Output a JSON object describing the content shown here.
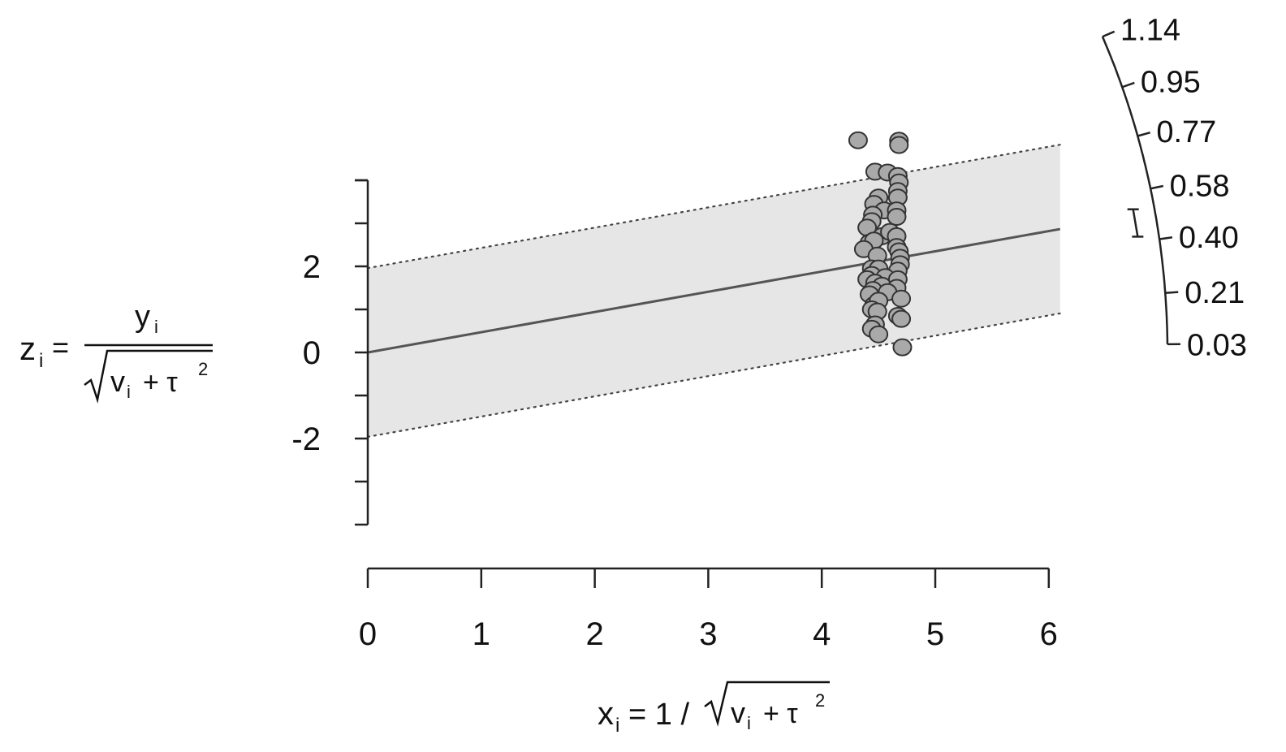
{
  "chart_data": {
    "type": "scatter",
    "subtype": "radial (Galbraith) plot",
    "title": "",
    "xlabel": {
      "lhs": "x",
      "sub": "i",
      "eq": "= 1 /",
      "rad_v": "v",
      "rad_sub": "i",
      "rad_plus": "+ τ",
      "rad_sup": "2"
    },
    "ylabel": {
      "lhs": "z",
      "lhs_sub": "i",
      "eq": "=",
      "num": "y",
      "num_sub": "i",
      "den_v": "v",
      "den_sub": "i",
      "den_plus": "+ τ",
      "den_sup": "2"
    },
    "xlim": [
      0,
      6
    ],
    "ylim": [
      -4,
      4
    ],
    "x_ticks": [
      "0",
      "1",
      "2",
      "3",
      "4",
      "5",
      "6"
    ],
    "y_ticks": [
      "-2",
      "0",
      "2"
    ],
    "y_minor_ticks": [
      -3,
      -2,
      -1,
      0,
      1,
      2,
      3,
      4
    ],
    "fit_line": {
      "intercept": 0,
      "slope": 0.47,
      "x_end": 6.1
    },
    "band": {
      "halfwidth": 1.96
    },
    "points": [
      {
        "x": 4.32,
        "y": 4.93
      },
      {
        "x": 4.68,
        "y": 4.92
      },
      {
        "x": 4.68,
        "y": 4.82
      },
      {
        "x": 4.47,
        "y": 4.2
      },
      {
        "x": 4.58,
        "y": 4.18
      },
      {
        "x": 4.67,
        "y": 4.1
      },
      {
        "x": 4.68,
        "y": 3.95
      },
      {
        "x": 4.5,
        "y": 3.6
      },
      {
        "x": 4.67,
        "y": 3.75
      },
      {
        "x": 4.67,
        "y": 3.6
      },
      {
        "x": 4.46,
        "y": 3.45
      },
      {
        "x": 4.55,
        "y": 3.3
      },
      {
        "x": 4.45,
        "y": 3.2
      },
      {
        "x": 4.66,
        "y": 3.3
      },
      {
        "x": 4.44,
        "y": 3.05
      },
      {
        "x": 4.66,
        "y": 3.15
      },
      {
        "x": 4.4,
        "y": 2.9
      },
      {
        "x": 4.53,
        "y": 2.7
      },
      {
        "x": 4.6,
        "y": 2.8
      },
      {
        "x": 4.66,
        "y": 2.7
      },
      {
        "x": 4.42,
        "y": 2.55
      },
      {
        "x": 4.46,
        "y": 2.6
      },
      {
        "x": 4.37,
        "y": 2.4
      },
      {
        "x": 4.66,
        "y": 2.45
      },
      {
        "x": 4.68,
        "y": 2.35
      },
      {
        "x": 4.49,
        "y": 2.25
      },
      {
        "x": 4.69,
        "y": 2.2
      },
      {
        "x": 4.69,
        "y": 2.05
      },
      {
        "x": 4.44,
        "y": 1.95
      },
      {
        "x": 4.5,
        "y": 1.95
      },
      {
        "x": 4.67,
        "y": 1.9
      },
      {
        "x": 4.44,
        "y": 1.8
      },
      {
        "x": 4.56,
        "y": 1.75
      },
      {
        "x": 4.4,
        "y": 1.7
      },
      {
        "x": 4.47,
        "y": 1.62
      },
      {
        "x": 4.67,
        "y": 1.7
      },
      {
        "x": 4.53,
        "y": 1.55
      },
      {
        "x": 4.45,
        "y": 1.45
      },
      {
        "x": 4.66,
        "y": 1.5
      },
      {
        "x": 4.42,
        "y": 1.35
      },
      {
        "x": 4.58,
        "y": 1.4
      },
      {
        "x": 4.7,
        "y": 1.25
      },
      {
        "x": 4.46,
        "y": 1.1
      },
      {
        "x": 4.5,
        "y": 1.2
      },
      {
        "x": 4.44,
        "y": 1.0
      },
      {
        "x": 4.49,
        "y": 0.95
      },
      {
        "x": 4.67,
        "y": 0.85
      },
      {
        "x": 4.7,
        "y": 0.78
      },
      {
        "x": 4.47,
        "y": 0.65
      },
      {
        "x": 4.44,
        "y": 0.55
      },
      {
        "x": 4.5,
        "y": 0.42
      },
      {
        "x": 4.71,
        "y": 0.12
      }
    ],
    "radial_scale": {
      "labels": [
        "1.14",
        "0.95",
        "0.77",
        "0.58",
        "0.40",
        "0.21",
        "0.03"
      ],
      "values": [
        1.14,
        0.95,
        0.77,
        0.58,
        0.4,
        0.21,
        0.03
      ],
      "summary_ci": {
        "lower": 0.42,
        "upper": 0.52
      }
    },
    "colors": {
      "band": "#e6e6e6",
      "point_fill": "#a9a9a9",
      "point_stroke": "#333333",
      "line": "#555555",
      "axis": "#222222"
    }
  }
}
